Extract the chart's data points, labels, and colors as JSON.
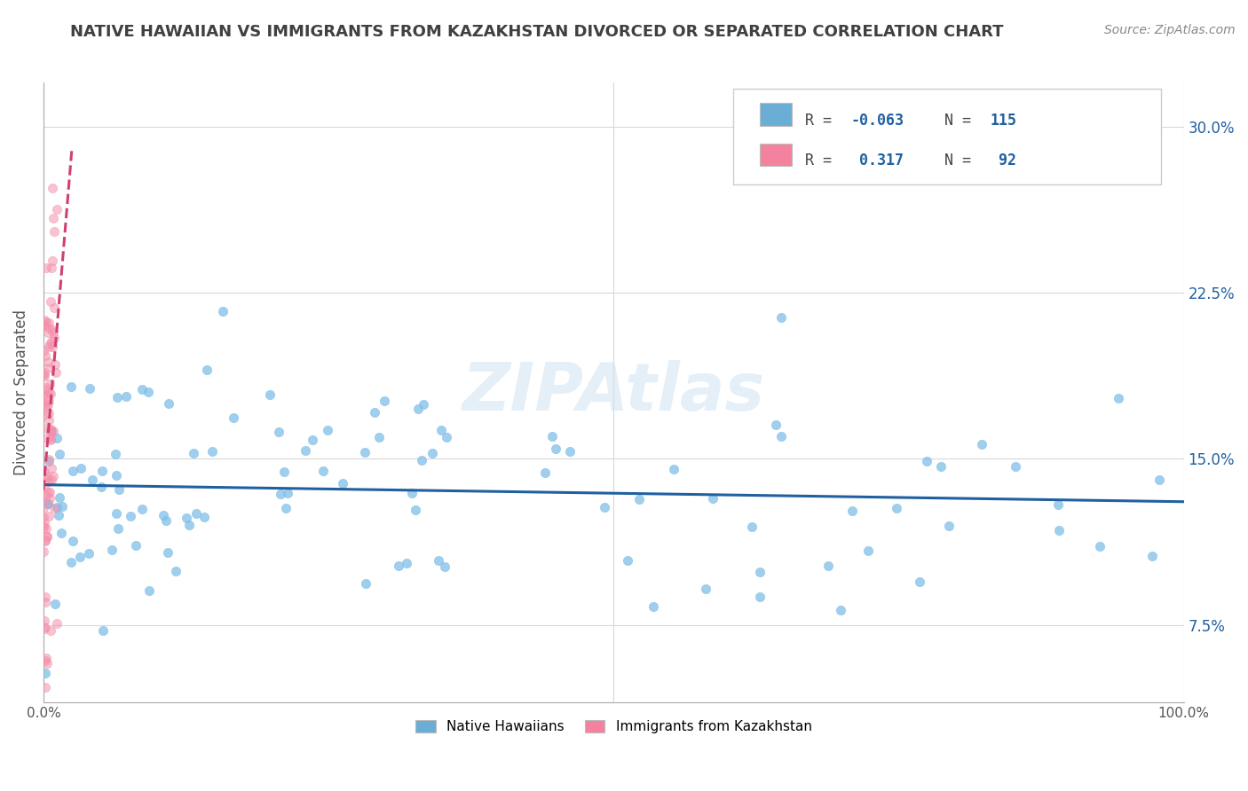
{
  "title": "NATIVE HAWAIIAN VS IMMIGRANTS FROM KAZAKHSTAN DIVORCED OR SEPARATED CORRELATION CHART",
  "source_text": "Source: ZipAtlas.com",
  "ylabel": "Divorced or Separated",
  "ytick_values": [
    0.075,
    0.15,
    0.225,
    0.3
  ],
  "blue_color": "#6aaed6",
  "pink_color": "#f4829e",
  "blue_scatter_color": "#7fbfe8",
  "pink_scatter_color": "#f490aa",
  "blue_line_color": "#2060a0",
  "pink_line_color": "#d04070",
  "background_color": "#ffffff",
  "grid_color": "#d8d8d8",
  "title_color": "#404040",
  "title_fontsize": 13,
  "watermark_text": "ZIPAtlas",
  "R_blue": -0.063,
  "N_blue": 115,
  "R_pink": 0.317,
  "N_pink": 92,
  "xlim": [
    0.0,
    1.0
  ],
  "ylim": [
    0.04,
    0.32
  ]
}
